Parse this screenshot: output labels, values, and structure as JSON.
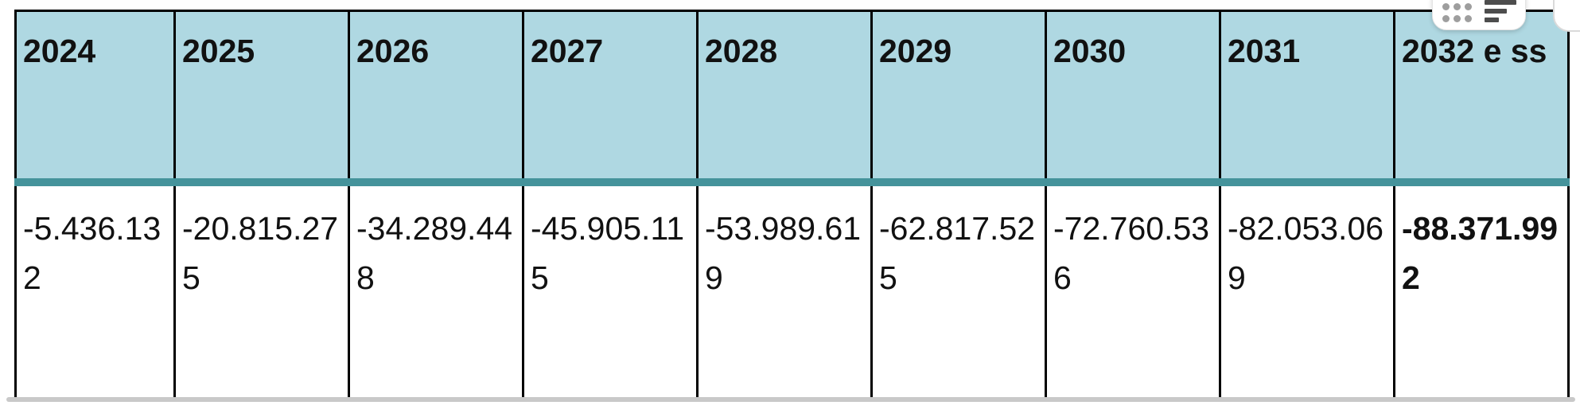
{
  "table": {
    "headers": [
      "2024",
      "2025",
      "2026",
      "2027",
      "2028",
      "2029",
      "2030",
      "2031",
      "2032 e ss"
    ],
    "values": [
      "-5.436.132",
      "-20.815.275",
      "-34.289.448",
      "-45.905.115",
      "-53.989.619",
      "-62.817.525",
      "-72.760.536",
      "-82.053.069",
      "-88.371.992"
    ]
  },
  "floating_toolbar": {
    "icons": [
      "drag-dots-icon",
      "sort-lines-icon"
    ]
  },
  "colors": {
    "header_background": "#AFD8E2",
    "header_divider_teal": "#45939B",
    "table_border": "#000000",
    "clip_line_gray": "#C9C9C9",
    "dots_gray": "#9E9E9E",
    "bars_dark_gray": "#4D4D4D"
  }
}
